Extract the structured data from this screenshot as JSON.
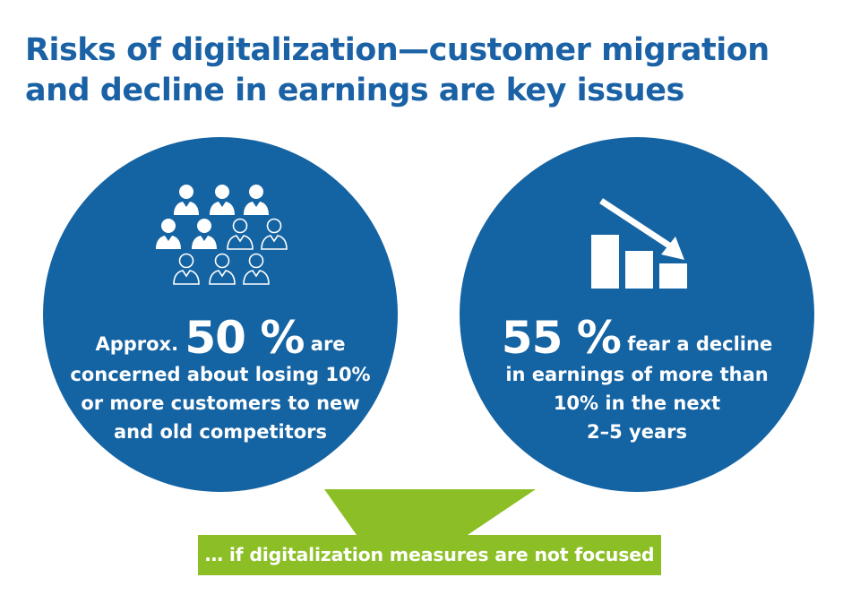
{
  "title": {
    "line1": "Risks of digitalization—customer migration",
    "line2": "and decline in earnings are key issues"
  },
  "left_stat": {
    "prefix": "Approx.",
    "value": "50 %",
    "suffix": "are",
    "line2": "concerned about losing 10%",
    "line3": "or more customers to new",
    "line4": "and old competitors",
    "icon": "people-group-icon"
  },
  "right_stat": {
    "value": "55 %",
    "suffix": "fear a decline",
    "line2": "in earnings of more than",
    "line3": "10% in the next",
    "line4": "2–5 years",
    "icon": "declining-bar-chart-icon"
  },
  "callout": {
    "text": "… if digitalization measures are not focused"
  },
  "colors": {
    "title": "#1a62a5",
    "circle": "#1463a3",
    "callout": "#8cbf26",
    "text_on_color": "#ffffff"
  }
}
